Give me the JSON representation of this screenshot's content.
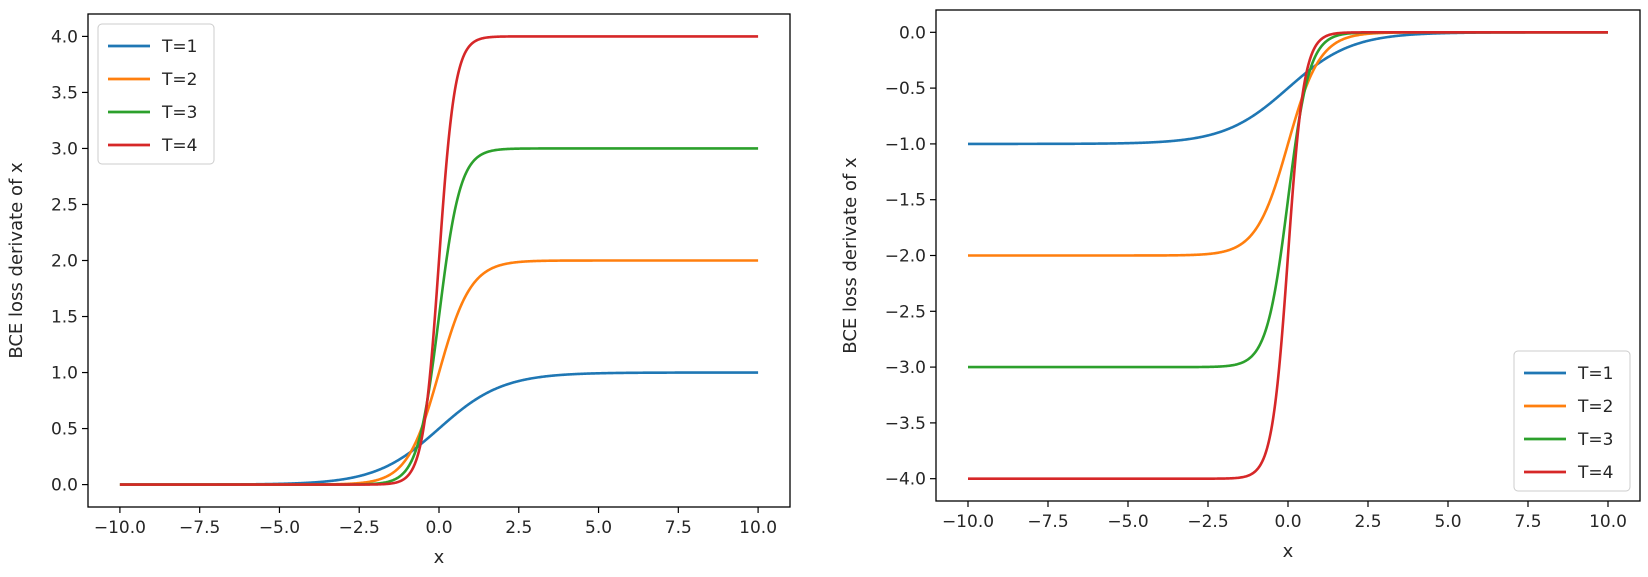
{
  "chart_data": [
    {
      "type": "line",
      "xlabel": "x",
      "ylabel": "BCE loss derivate of x",
      "xlim": [
        -11.0,
        11.0
      ],
      "ylim": [
        -0.2,
        4.2
      ],
      "x_ticks": [
        -10.0,
        -7.5,
        -5.0,
        -2.5,
        0.0,
        2.5,
        5.0,
        7.5,
        10.0
      ],
      "x_tick_labels": [
        "−10.0",
        "−7.5",
        "−5.0",
        "−2.5",
        "0.0",
        "2.5",
        "5.0",
        "7.5",
        "10.0"
      ],
      "y_ticks": [
        0.0,
        0.5,
        1.0,
        1.5,
        2.0,
        2.5,
        3.0,
        3.5,
        4.0
      ],
      "y_tick_labels": [
        "0.0",
        "0.5",
        "1.0",
        "1.5",
        "2.0",
        "2.5",
        "3.0",
        "3.5",
        "4.0"
      ],
      "legend_position": "top-left",
      "function": "T*sigmoid(T*x)",
      "x_range": [
        -10,
        10
      ],
      "series": [
        {
          "name": "T=1",
          "T": 1,
          "color": "#1f77b4"
        },
        {
          "name": "T=2",
          "T": 2,
          "color": "#ff7f0e"
        },
        {
          "name": "T=3",
          "T": 3,
          "color": "#2ca02c"
        },
        {
          "name": "T=4",
          "T": 4,
          "color": "#d62728"
        }
      ]
    },
    {
      "type": "line",
      "xlabel": "x",
      "ylabel": "BCE loss derivate of x",
      "xlim": [
        -11.0,
        11.0
      ],
      "ylim": [
        -4.2,
        0.2
      ],
      "x_ticks": [
        -10.0,
        -7.5,
        -5.0,
        -2.5,
        0.0,
        2.5,
        5.0,
        7.5,
        10.0
      ],
      "x_tick_labels": [
        "−10.0",
        "−7.5",
        "−5.0",
        "−2.5",
        "0.0",
        "2.5",
        "5.0",
        "7.5",
        "10.0"
      ],
      "y_ticks": [
        0.0,
        -0.5,
        -1.0,
        -1.5,
        -2.0,
        -2.5,
        -3.0,
        -3.5,
        -4.0
      ],
      "y_tick_labels": [
        "0.0",
        "−0.5",
        "−1.0",
        "−1.5",
        "−2.0",
        "−2.5",
        "−3.0",
        "−3.5",
        "−4.0"
      ],
      "legend_position": "bottom-right",
      "function": "T*(sigmoid(T*x)-1)",
      "x_range": [
        -10,
        10
      ],
      "series": [
        {
          "name": "T=1",
          "T": 1,
          "color": "#1f77b4"
        },
        {
          "name": "T=2",
          "T": 2,
          "color": "#ff7f0e"
        },
        {
          "name": "T=3",
          "T": 3,
          "color": "#2ca02c"
        },
        {
          "name": "T=4",
          "T": 4,
          "color": "#d62728"
        }
      ]
    }
  ]
}
